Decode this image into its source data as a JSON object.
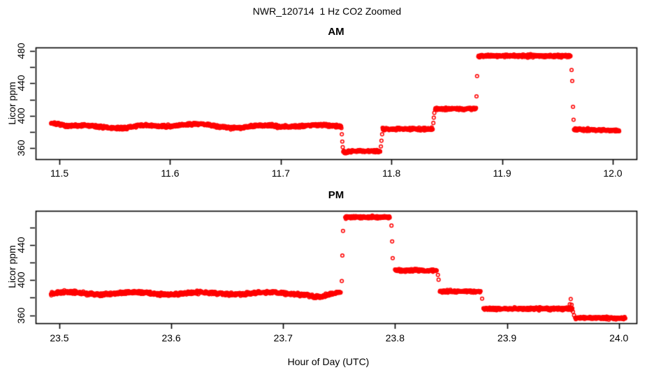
{
  "main_title": "NWR_120714  1 Hz CO2 Zoomed",
  "xlabel": "Hour of Day (UTC)",
  "marker_color": "#FF0000",
  "axis_color": "#000000",
  "chart_data": [
    {
      "id": "am",
      "type": "scatter",
      "title": "AM",
      "xlabel": "",
      "ylabel": "Licor ppm",
      "legend": "none",
      "grid": false,
      "marker": {
        "shape": "open-circle",
        "color": "#FF0000",
        "radius_px": 2.3
      },
      "xlim": [
        11.4785,
        12.0215
      ],
      "ylim": [
        346.2,
        484.4
      ],
      "xticks": [
        11.5,
        11.6,
        11.7,
        11.8,
        11.9,
        12.0
      ],
      "xtick_labels": [
        "11.5",
        "11.6",
        "11.7",
        "11.8",
        "11.9",
        "12.0"
      ],
      "yticks": [
        360,
        380,
        400,
        420,
        440,
        460,
        480
      ],
      "ytick_labeled": [
        360,
        400,
        440,
        480
      ],
      "sample_interval_hr": 0.000277778,
      "segments": [
        {
          "t0": 11.4925,
          "t1": 11.5065,
          "level": 391.0,
          "ramp_to": 387.5,
          "noise": 2.2
        },
        {
          "t0": 11.5065,
          "t1": 11.755,
          "level": 386.5,
          "noise": 2.6,
          "wander": {
            "amp": 1.4,
            "period": 0.055
          },
          "bumps": [
            {
              "t0": 11.578,
              "t1": 11.648,
              "dy": 3.0
            },
            {
              "t0": 11.69,
              "t1": 11.748,
              "dy": 2.0
            },
            {
              "t0": 11.54,
              "t1": 11.576,
              "dy": -1.2
            }
          ]
        },
        {
          "t0": 11.7565,
          "t1": 11.79,
          "level": 356.2,
          "noise": 2.0,
          "bumps": [
            {
              "t0": 11.7565,
              "t1": 11.761,
              "dy": -2.5
            }
          ]
        },
        {
          "t0": 11.792,
          "t1": 11.8375,
          "level": 383.5,
          "noise": 2.4
        },
        {
          "t0": 11.8395,
          "t1": 11.8765,
          "level": 408.5,
          "noise": 2.2
        },
        {
          "t0": 11.8785,
          "t1": 11.962,
          "level": 474.0,
          "noise": 2.4
        },
        {
          "t0": 11.965,
          "t1": 12.006,
          "level": 383.0,
          "ramp_to": 381.5,
          "noise": 2.4
        }
      ],
      "transition_points": [
        [
          11.7552,
          377
        ],
        [
          11.7556,
          368
        ],
        [
          11.756,
          361
        ],
        [
          11.7905,
          362
        ],
        [
          11.791,
          369
        ],
        [
          11.7916,
          377
        ],
        [
          11.8379,
          391
        ],
        [
          11.8383,
          397.5
        ],
        [
          11.8388,
          403.5
        ],
        [
          11.8769,
          424
        ],
        [
          11.8774,
          449
        ],
        [
          11.9628,
          456.5
        ],
        [
          11.9634,
          443
        ],
        [
          11.9641,
          411
        ],
        [
          11.9646,
          395
        ]
      ]
    },
    {
      "id": "pm",
      "type": "scatter",
      "title": "PM",
      "xlabel": "",
      "ylabel": "Licor ppm",
      "legend": "none",
      "grid": false,
      "marker": {
        "shape": "open-circle",
        "color": "#FF0000",
        "radius_px": 2.3
      },
      "xlim": [
        23.4788,
        24.0158
      ],
      "ylim": [
        351.0,
        478.8
      ],
      "xticks": [
        23.5,
        23.6,
        23.7,
        23.8,
        23.9,
        24.0
      ],
      "xtick_labels": [
        "23.5",
        "23.6",
        "23.7",
        "23.8",
        "23.9",
        "24.0"
      ],
      "yticks": [
        360,
        380,
        400,
        420,
        440,
        460
      ],
      "ytick_labeled": [
        360,
        400,
        440
      ],
      "sample_interval_hr": 0.000277778,
      "segments": [
        {
          "t0": 23.4925,
          "t1": 23.7515,
          "level": 385.0,
          "noise": 2.5,
          "wander": {
            "amp": 1.2,
            "period": 0.06
          },
          "bumps": [
            {
              "t0": 23.716,
              "t1": 23.75,
              "dy": -4.0
            }
          ]
        },
        {
          "t0": 23.7555,
          "t1": 23.7955,
          "level": 471.5,
          "noise": 2.2
        },
        {
          "t0": 23.8,
          "t1": 23.8375,
          "level": 411.0,
          "noise": 2.2
        },
        {
          "t0": 23.84,
          "t1": 23.8765,
          "level": 387.2,
          "noise": 2.2
        },
        {
          "t0": 23.879,
          "t1": 23.9585,
          "level": 367.4,
          "noise": 2.2
        },
        {
          "t0": 23.961,
          "t1": 24.006,
          "level": 357.3,
          "ramp_to": 356.5,
          "noise": 2.0
        }
      ],
      "transition_points": [
        [
          23.7524,
          399
        ],
        [
          23.7529,
          428
        ],
        [
          23.7535,
          456
        ],
        [
          23.7968,
          462
        ],
        [
          23.7974,
          444
        ],
        [
          23.7979,
          425
        ],
        [
          23.8383,
          406
        ],
        [
          23.8389,
          400.5
        ],
        [
          23.8778,
          379
        ],
        [
          23.9562,
          372.5
        ],
        [
          23.957,
          378.5
        ],
        [
          23.9578,
          372
        ],
        [
          23.959,
          364
        ],
        [
          23.96,
          360
        ]
      ]
    }
  ]
}
